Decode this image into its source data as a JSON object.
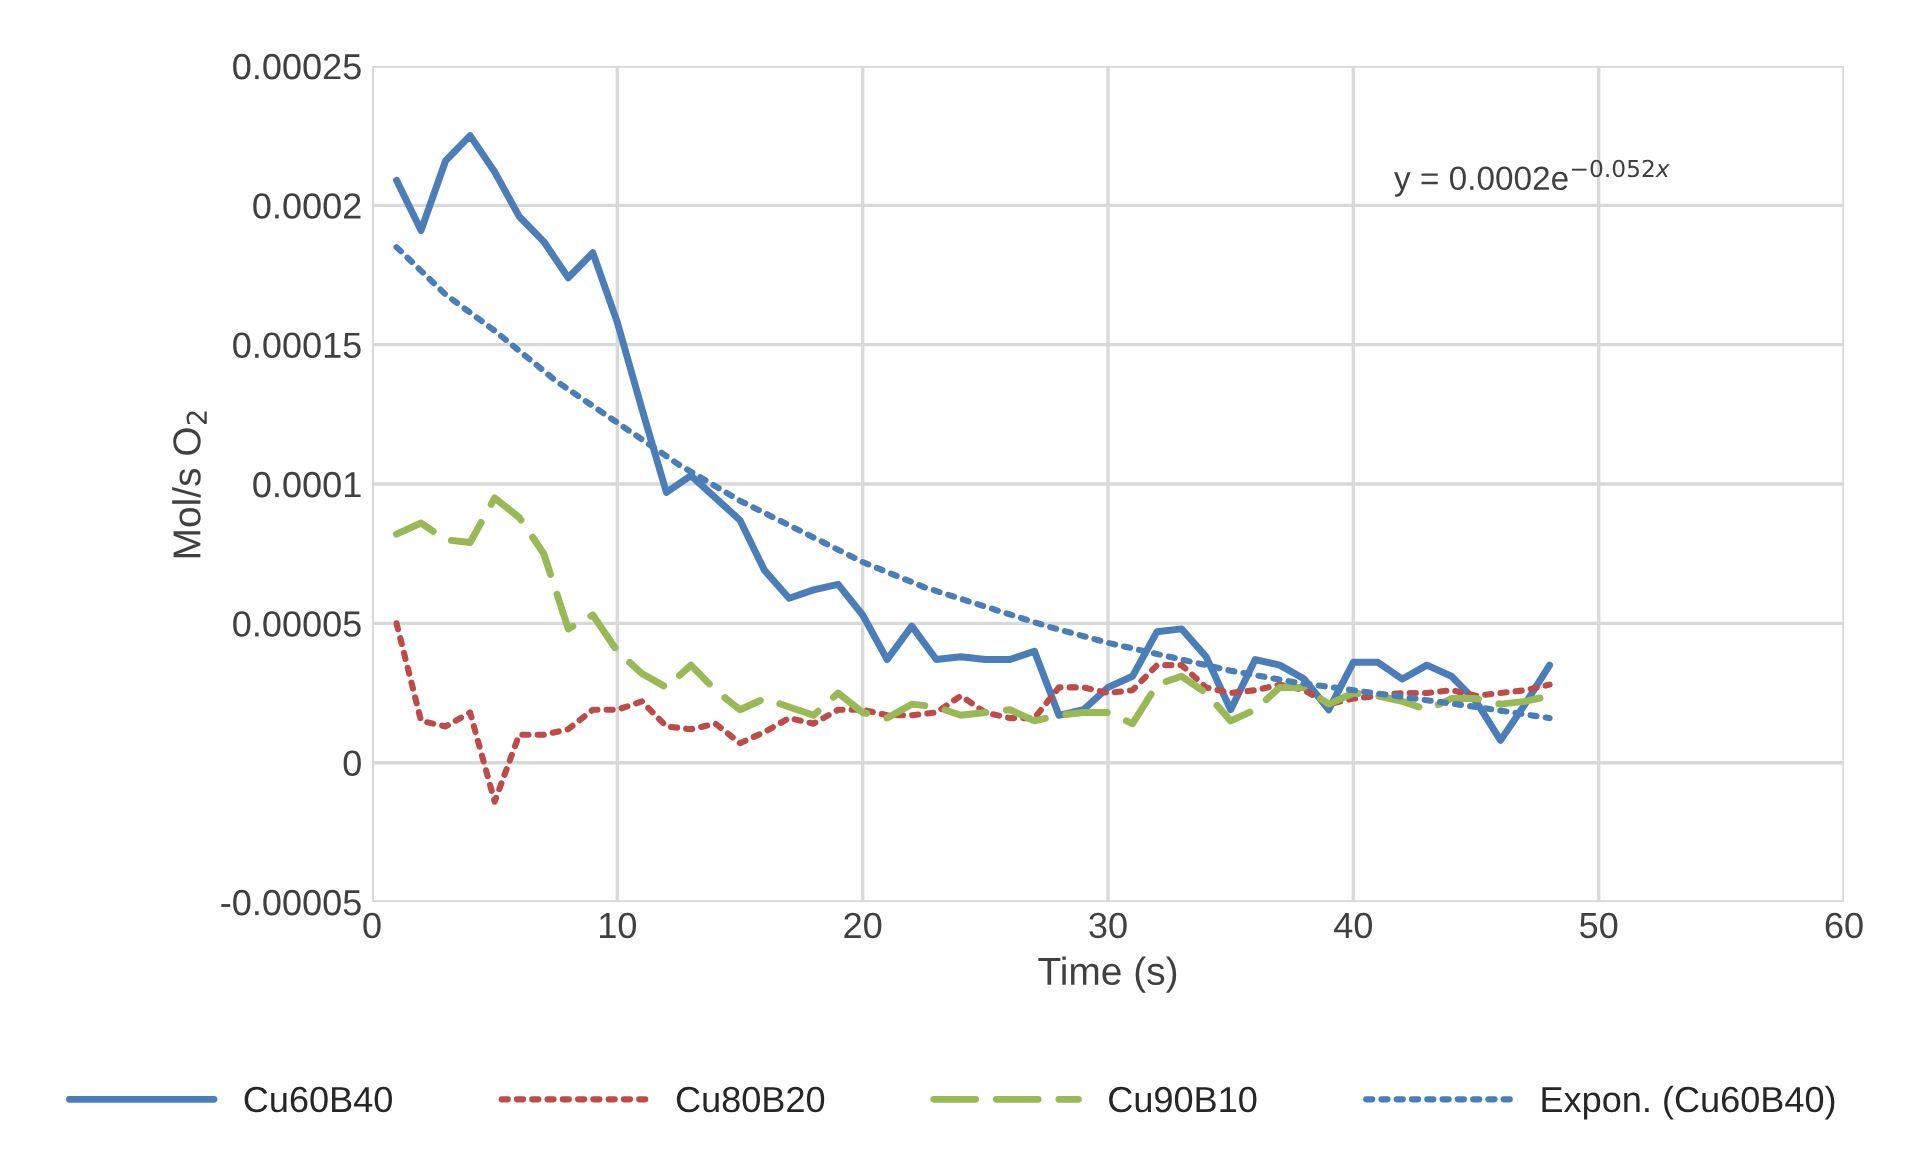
{
  "chart_data": {
    "type": "line",
    "xlabel": "Time (s)",
    "ylabel": "Mol/s O$_{2}$",
    "x": [
      1,
      2,
      3,
      4,
      5,
      6,
      7,
      8,
      9,
      10,
      11,
      12,
      13,
      14,
      15,
      16,
      17,
      18,
      19,
      20,
      21,
      22,
      23,
      24,
      25,
      26,
      27,
      28,
      29,
      30,
      31,
      32,
      33,
      34,
      35,
      36,
      37,
      38,
      39,
      40,
      41,
      42,
      43,
      44,
      45,
      46,
      47,
      48
    ],
    "series": [
      {
        "name": "Cu60B40",
        "color": "#4a7ebb",
        "line_style": "solid",
        "values": [
          0.000209,
          0.000191,
          0.000216,
          0.000225,
          0.000212,
          0.000196,
          0.000187,
          0.000174,
          0.000183,
          0.000158,
          0.000127,
          9.7e-05,
          0.000103,
          9.5e-05,
          8.7e-05,
          6.9e-05,
          5.9e-05,
          6.2e-05,
          6.4e-05,
          5.3e-05,
          3.7e-05,
          4.9e-05,
          3.7e-05,
          3.8e-05,
          3.7e-05,
          3.7e-05,
          4e-05,
          1.7e-05,
          1.9e-05,
          2.7e-05,
          3.1e-05,
          4.7e-05,
          4.8e-05,
          3.8e-05,
          1.9e-05,
          3.7e-05,
          3.5e-05,
          3e-05,
          1.9e-05,
          3.6e-05,
          3.6e-05,
          3e-05,
          3.5e-05,
          3.1e-05,
          2.2e-05,
          8e-06,
          2.1e-05,
          3.5e-05
        ]
      },
      {
        "name": "Cu80B20",
        "color": "#be4b48",
        "line_style": "dotted",
        "values": [
          5e-05,
          1.5e-05,
          1.3e-05,
          1.8e-05,
          -1.4e-05,
          1e-05,
          1e-05,
          1.2e-05,
          1.9e-05,
          1.9e-05,
          2.2e-05,
          1.3e-05,
          1.2e-05,
          1.4e-05,
          7e-06,
          1.1e-05,
          1.6e-05,
          1.4e-05,
          1.9e-05,
          1.9e-05,
          1.7e-05,
          1.7e-05,
          1.8e-05,
          2.4e-05,
          1.8e-05,
          1.6e-05,
          1.6e-05,
          2.7e-05,
          2.7e-05,
          2.5e-05,
          2.6e-05,
          3.5e-05,
          3.5e-05,
          2.7e-05,
          2.5e-05,
          2.6e-05,
          2.8e-05,
          2.6e-05,
          2.1e-05,
          2.3e-05,
          2.4e-05,
          2.5e-05,
          2.5e-05,
          2.6e-05,
          2.4e-05,
          2.5e-05,
          2.6e-05,
          2.8e-05
        ]
      },
      {
        "name": "Cu90B10",
        "color": "#98b954",
        "line_style": "dashed",
        "values": [
          8.2e-05,
          8.6e-05,
          8e-05,
          7.9e-05,
          9.5e-05,
          8.8e-05,
          7.5e-05,
          4.8e-05,
          5.3e-05,
          4e-05,
          3.2e-05,
          2.7e-05,
          3.5e-05,
          2.6e-05,
          1.9e-05,
          2.3e-05,
          2e-05,
          1.7e-05,
          2.5e-05,
          1.8e-05,
          1.6e-05,
          2.1e-05,
          2e-05,
          1.7e-05,
          1.8e-05,
          1.9e-05,
          1.5e-05,
          1.7e-05,
          1.8e-05,
          1.8e-05,
          1.4e-05,
          2.8e-05,
          3.1e-05,
          2.5e-05,
          1.5e-05,
          1.9e-05,
          2.7e-05,
          2.7e-05,
          2.1e-05,
          2.5e-05,
          2.4e-05,
          2.2e-05,
          1.9e-05,
          2.3e-05,
          2.3e-05,
          2.1e-05,
          2.2e-05,
          2.4e-05
        ]
      },
      {
        "name": "Expon. (Cu60B40)",
        "color": "#4a7ebb",
        "line_style": "dotted",
        "x": [
          1,
          3,
          5,
          7.5,
          10,
          12.5,
          15,
          17.5,
          20,
          22.5,
          25,
          27.5,
          30,
          32.5,
          35,
          37.5,
          40,
          42.5,
          45,
          48
        ],
        "values": [
          0.000185,
          0.000168,
          0.000155,
          0.000137,
          0.000122,
          0.000107,
          9.4e-05,
          8.3e-05,
          7.2e-05,
          6.3e-05,
          5.6e-05,
          4.9e-05,
          4.3e-05,
          3.8e-05,
          3.3e-05,
          2.9e-05,
          2.6e-05,
          2.3e-05,
          2e-05,
          1.6e-05
        ]
      }
    ],
    "annotations": [
      "y = 0.0002e$^{−0.052x}$"
    ],
    "xlim": [
      0,
      60
    ],
    "xticks": [
      0,
      10,
      20,
      30,
      40,
      50,
      60
    ],
    "ylim": [
      -5e-05,
      0.00025
    ],
    "yticks": [
      {
        "value": -5e-05,
        "label": "-0.00005"
      },
      {
        "value": 0,
        "label": "0"
      },
      {
        "value": 5e-05,
        "label": "0.00005"
      },
      {
        "value": 0.0001,
        "label": "0.0001"
      },
      {
        "value": 0.00015,
        "label": "0.00015"
      },
      {
        "value": 0.0002,
        "label": "0.0002"
      },
      {
        "value": 0.00025,
        "label": "0.00025"
      }
    ],
    "grid": true,
    "legend": "bottom"
  }
}
